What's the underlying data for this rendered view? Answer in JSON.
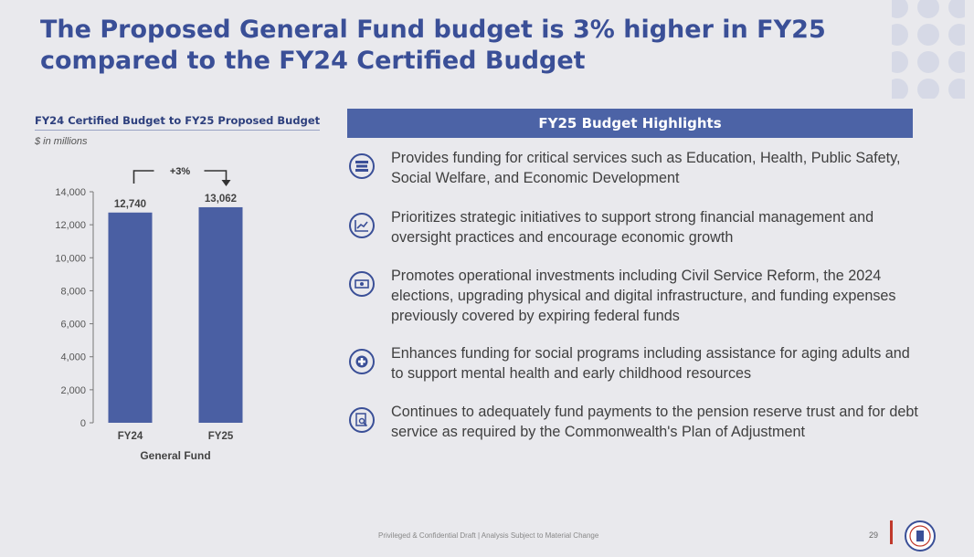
{
  "title": "The Proposed General Fund budget is 3% higher in FY25 compared to the FY24 Certified Budget",
  "chart_data": {
    "type": "bar",
    "title": "FY24 Certified Budget to FY25 Proposed Budget",
    "subtitle": "$ in millions",
    "categories": [
      "FY24",
      "FY25"
    ],
    "values": [
      12740,
      13062
    ],
    "data_labels": [
      "12,740",
      "13,062"
    ],
    "xlabel": "General Fund",
    "ylabel": "",
    "ylim": [
      0,
      14000
    ],
    "yticks": [
      0,
      2000,
      4000,
      6000,
      8000,
      10000,
      12000,
      14000
    ],
    "ytick_labels": [
      "0",
      "2,000",
      "4,000",
      "6,000",
      "8,000",
      "10,000",
      "12,000",
      "14,000"
    ],
    "annotation": "+3%",
    "bar_color": "#4a5fa3"
  },
  "highlights": {
    "header": "FY25 Budget Highlights",
    "items": [
      {
        "icon": "stacked-books-icon",
        "text": "Provides funding for critical services such as Education, Health, Public Safety, Social Welfare, and Economic Development"
      },
      {
        "icon": "trend-chart-icon",
        "text": "Prioritizes strategic initiatives to support strong financial management and oversight practices and encourage economic growth"
      },
      {
        "icon": "cash-icon",
        "text": "Promotes operational investments including Civil Service Reform, the 2024 elections, upgrading physical and digital infrastructure, and funding expenses previously covered by expiring federal funds"
      },
      {
        "icon": "medical-cross-icon",
        "text": "Enhances funding for social programs including assistance for aging adults and to support mental health and early childhood resources"
      },
      {
        "icon": "document-search-icon",
        "text": "Continues to adequately fund payments to the pension reserve trust and for debt service as required by the Commonwealth's Plan of Adjustment"
      }
    ]
  },
  "footer": {
    "note": "Privileged & Confidential Draft | Analysis Subject to Material Change",
    "page": "29"
  },
  "colors": {
    "title": "#3a4f97",
    "header_bg": "#4c63a6",
    "accent": "#c0392b",
    "background": "#e9e9ed"
  }
}
